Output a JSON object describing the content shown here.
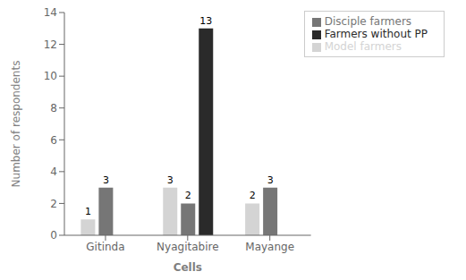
{
  "chart_data": {
    "type": "bar",
    "categories": [
      "Gitinda",
      "Nyagitabire",
      "Mayange"
    ],
    "series": [
      {
        "name": "Model farmers",
        "color": "#d4d4d4",
        "values": [
          1,
          3,
          2
        ]
      },
      {
        "name": "Disciple farmers",
        "color": "#767676",
        "values": [
          3,
          2,
          3
        ]
      },
      {
        "name": "Farmers without PP",
        "color": "#2a2a2a",
        "values": [
          0,
          13,
          0
        ]
      }
    ],
    "xlabel": "Cells",
    "ylabel": "Number of respondents",
    "ylim": [
      0,
      14
    ],
    "yticks": [
      0,
      2,
      4,
      6,
      8,
      10,
      12,
      14
    ],
    "legend": "upper right",
    "data_labels": true,
    "grid": false
  }
}
